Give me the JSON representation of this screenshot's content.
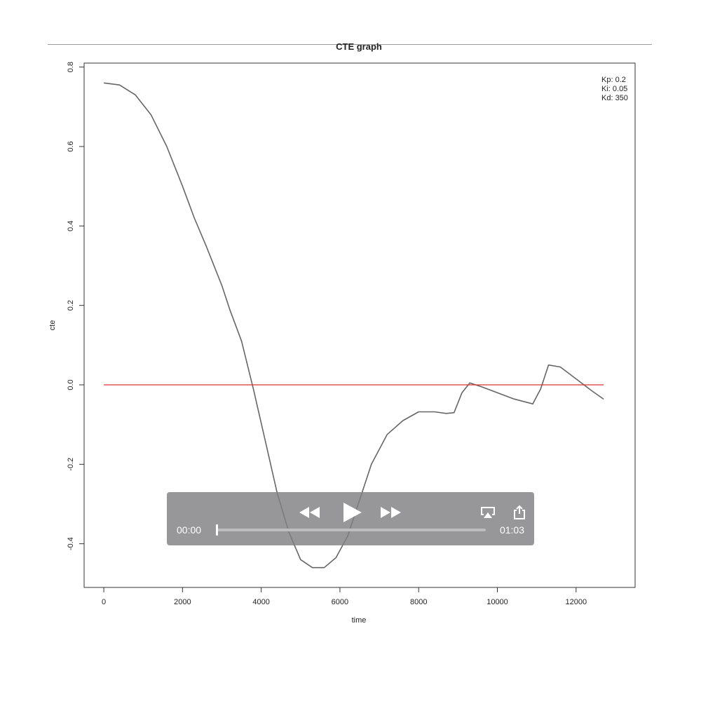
{
  "chart_data": {
    "type": "line",
    "title": "CTE graph",
    "xlabel": "time",
    "ylabel": "cte",
    "xlim": [
      -500,
      13500
    ],
    "ylim": [
      -0.51,
      0.81
    ],
    "xticks": [
      0,
      2000,
      4000,
      6000,
      8000,
      10000,
      12000
    ],
    "yticks": [
      -0.4,
      -0.2,
      0.0,
      0.2,
      0.4,
      0.6,
      0.8
    ],
    "ytick_labels": [
      "-0.4",
      "-0.2",
      "0.0",
      "0.2",
      "0.4",
      "0.6",
      "0.8"
    ],
    "grid": false,
    "legend": {
      "placement": "top-right",
      "lines": [
        "Kp:  0.2",
        "Ki:  0.05",
        "Kd:  350"
      ]
    },
    "series": [
      {
        "color": "#666666",
        "x": [
          0,
          400,
          800,
          1200,
          1600,
          2000,
          2300,
          2600,
          3000,
          3200,
          3500,
          3800,
          4100,
          4400,
          4700,
          5000,
          5300,
          5600,
          5900,
          6200,
          6500,
          6800,
          7200,
          7600,
          8000,
          8400,
          8700,
          8900,
          9100,
          9300,
          9600,
          10000,
          10400,
          10900,
          11100,
          11300,
          11600,
          12000,
          12400,
          12700
        ],
        "y": [
          0.76,
          0.755,
          0.73,
          0.68,
          0.6,
          0.5,
          0.42,
          0.35,
          0.25,
          0.19,
          0.11,
          -0.01,
          -0.14,
          -0.27,
          -0.37,
          -0.44,
          -0.46,
          -0.46,
          -0.435,
          -0.38,
          -0.29,
          -0.2,
          -0.125,
          -0.09,
          -0.068,
          -0.068,
          -0.072,
          -0.07,
          -0.02,
          0.005,
          -0.005,
          -0.02,
          -0.035,
          -0.048,
          -0.01,
          0.05,
          0.045,
          0.015,
          -0.015,
          -0.036
        ]
      },
      {
        "color": "#dd3333",
        "x": [
          0,
          12700
        ],
        "y": [
          0.0,
          0.0
        ]
      }
    ]
  },
  "player": {
    "current_time": "00:00",
    "total_time": "01:03",
    "progress": 0.0,
    "accent": "#ffffff"
  }
}
